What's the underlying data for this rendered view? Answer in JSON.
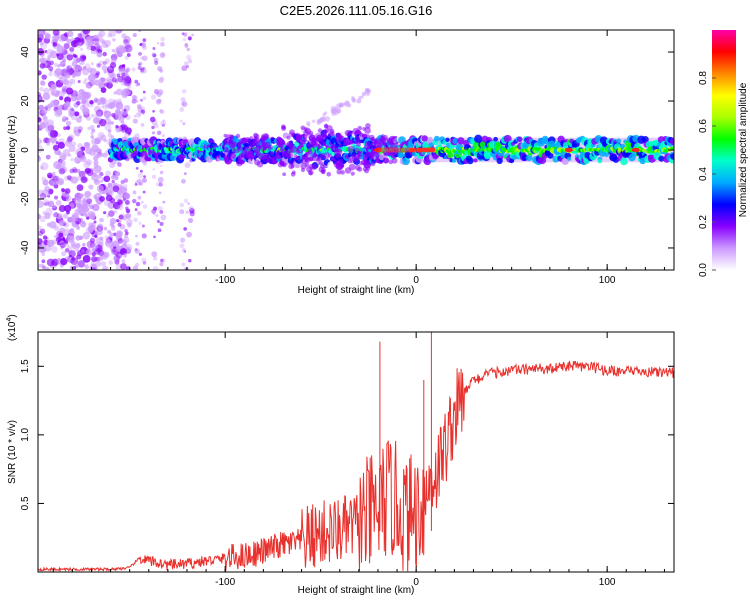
{
  "chart_data": [
    {
      "type": "heatmap",
      "title": "C2E5.2026.111.05.16.G16",
      "xlabel": "Height of straight line (km)",
      "ylabel": "Frequency (Hz)",
      "xlim": [
        -198,
        135
      ],
      "ylim": [
        -49,
        49
      ],
      "xticks": [
        -100,
        0,
        100
      ],
      "yticks": [
        -40,
        -20,
        0,
        20,
        40
      ],
      "colorbar": {
        "label": "Normalized spectral amplitude",
        "range": [
          0,
          1
        ],
        "ticks": [
          "0.0",
          "0.2",
          "0.4",
          "0.6",
          "0.8"
        ],
        "colors": [
          "#ffffff",
          "#cc99ff",
          "#8800ff",
          "#0000ff",
          "#00aaff",
          "#00ffcc",
          "#00ff00",
          "#aaff00",
          "#ffff00",
          "#ff8800",
          "#ff0000",
          "#ff00aa"
        ]
      },
      "features": {
        "noise_region_x": [
          -198,
          -150
        ],
        "sparse_noise_columns_x": [
          -145,
          -135,
          -120
        ],
        "ridge_start_x": -160,
        "ridge_frequency_hz": 0,
        "drifting_branch": {
          "x": [
            -50,
            -30,
            -25
          ],
          "y": [
            12,
            20,
            24
          ]
        },
        "strong_spots_x": [
          -20,
          -2,
          2,
          5,
          8,
          80,
          115
        ]
      }
    },
    {
      "type": "line",
      "xlabel": "Height of straight line (km)",
      "ylabel": "SNR (10 * v/v)",
      "yscale_label": "(x10",
      "yscale_exponent": "4",
      "xlim": [
        -198,
        135
      ],
      "ylim": [
        0,
        1.75
      ],
      "xticks": [
        -100,
        0,
        100
      ],
      "yticks": [
        0.5,
        1.0,
        1.5
      ],
      "ytick_labels": [
        "0.5",
        "1.0",
        "1.5"
      ],
      "series": [
        {
          "name": "SNR",
          "color": "#e8312d",
          "x": [
            -198,
            -180,
            -160,
            -150,
            -145,
            -140,
            -130,
            -120,
            -110,
            -100,
            -90,
            -80,
            -70,
            -60,
            -50,
            -40,
            -30,
            -20,
            -15,
            -10,
            -5,
            0,
            5,
            8,
            10,
            15,
            20,
            25,
            30,
            40,
            50,
            60,
            70,
            80,
            90,
            100,
            110,
            120,
            135
          ],
          "values": [
            0.02,
            0.02,
            0.02,
            0.03,
            0.1,
            0.08,
            0.05,
            0.06,
            0.08,
            0.1,
            0.12,
            0.15,
            0.2,
            0.22,
            0.28,
            0.3,
            0.35,
            0.45,
            0.55,
            0.5,
            0.4,
            0.45,
            0.55,
            0.7,
            0.7,
            0.9,
            1.15,
            1.3,
            1.4,
            1.45,
            1.47,
            1.48,
            1.48,
            1.5,
            1.5,
            1.47,
            1.46,
            1.46,
            1.45
          ]
        }
      ],
      "spikes": [
        {
          "x": -19,
          "value": 1.68
        },
        {
          "x": 8,
          "value": 1.75
        },
        {
          "x": 4,
          "value": 1.4
        }
      ]
    }
  ]
}
